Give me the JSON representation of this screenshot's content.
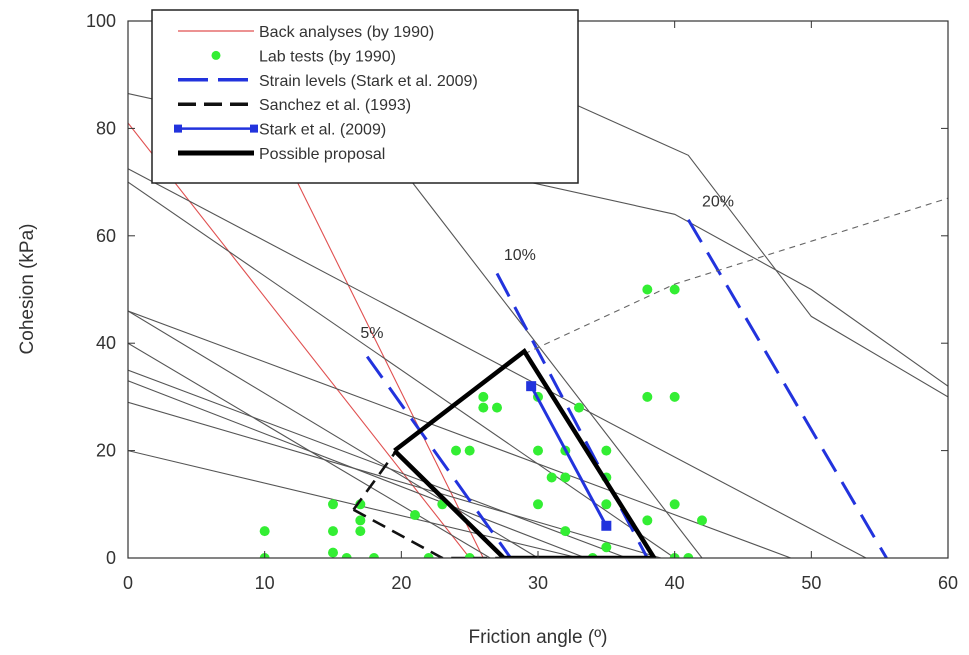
{
  "chart_data": {
    "type": "line",
    "title": "",
    "xlabel": "Friction angle (º)",
    "ylabel": "Cohesion (kPa)",
    "xlim": [
      0,
      60
    ],
    "ylim": [
      0,
      100
    ],
    "x_ticks": [
      "0",
      "10",
      "20",
      "30",
      "40",
      "50",
      "60"
    ],
    "y_ticks": [
      "0",
      "20",
      "40",
      "60",
      "80",
      "100"
    ],
    "grid": false,
    "legend_position": "top-left",
    "legend": [
      {
        "label": "Back analyses (by 1990)",
        "style": "thin-solid",
        "color": "#e05050"
      },
      {
        "label": "Lab tests (by 1990)",
        "style": "dot",
        "color": "#33ee33"
      },
      {
        "label": "Strain levels (Stark et al. 2009)",
        "style": "long-dash",
        "color": "#2233dd"
      },
      {
        "label": "Sanchez et al. (1993)",
        "style": "dash",
        "color": "#111111"
      },
      {
        "label": "Stark et al. (2009)",
        "style": "solid-square",
        "color": "#2233dd"
      },
      {
        "label": "Possible proposal",
        "style": "thick-solid",
        "color": "#000000"
      }
    ],
    "series": [
      {
        "name": "Back analyses (by 1990)",
        "type": "lines",
        "color": "#e05050",
        "lines": [
          [
            [
              0,
              81
            ],
            [
              25,
              0
            ]
          ],
          [
            [
              12,
              72
            ],
            [
              26,
              0
            ]
          ]
        ]
      },
      {
        "type": "lines",
        "color": "#555555",
        "lines": [
          [
            [
              0,
              46
            ],
            [
              30,
              0
            ]
          ],
          [
            [
              0,
              40
            ],
            [
              26.5,
              0
            ]
          ],
          [
            [
              0,
              35
            ],
            [
              36.5,
              0
            ]
          ],
          [
            [
              0,
              33
            ],
            [
              33.5,
              0
            ]
          ],
          [
            [
              0,
              29
            ],
            [
              39,
              0
            ]
          ],
          [
            [
              0,
              20
            ],
            [
              33,
              0
            ]
          ],
          [
            [
              0,
              46
            ],
            [
              48.5,
              0
            ]
          ],
          [
            [
              0,
              70
            ],
            [
              40,
              0
            ]
          ],
          [
            [
              0,
              72.5
            ],
            [
              54,
              0
            ]
          ],
          [
            [
              12,
              99
            ],
            [
              42,
              0
            ]
          ],
          [
            [
              0,
              86.5
            ],
            [
              40,
              64
            ],
            [
              50,
              50
            ],
            [
              60,
              32
            ]
          ],
          [
            [
              20,
              99
            ],
            [
              41,
              75
            ],
            [
              50,
              45
            ],
            [
              60,
              30
            ]
          ]
        ]
      },
      {
        "name": "Lab tests (by 1990)",
        "type": "scatter",
        "color": "#33ee33",
        "points": [
          [
            10,
            5
          ],
          [
            10,
            0
          ],
          [
            15,
            10
          ],
          [
            15,
            5
          ],
          [
            15,
            1
          ],
          [
            16,
            0
          ],
          [
            17,
            10
          ],
          [
            17,
            7
          ],
          [
            17,
            5
          ],
          [
            18,
            0
          ],
          [
            21,
            8
          ],
          [
            22,
            0
          ],
          [
            23,
            10
          ],
          [
            24,
            20
          ],
          [
            25,
            0
          ],
          [
            25,
            20
          ],
          [
            26,
            28
          ],
          [
            26,
            30
          ],
          [
            27,
            28
          ],
          [
            30,
            30
          ],
          [
            30,
            20
          ],
          [
            30,
            10
          ],
          [
            31,
            15
          ],
          [
            32,
            15
          ],
          [
            32,
            20
          ],
          [
            32,
            5
          ],
          [
            33,
            28
          ],
          [
            34,
            0
          ],
          [
            35,
            20
          ],
          [
            35,
            15
          ],
          [
            35,
            10
          ],
          [
            35,
            2
          ],
          [
            38,
            50
          ],
          [
            38,
            30
          ],
          [
            38,
            7
          ],
          [
            40,
            50
          ],
          [
            40,
            30
          ],
          [
            40,
            10
          ],
          [
            40,
            0
          ],
          [
            41,
            0
          ],
          [
            42,
            7
          ]
        ]
      },
      {
        "name": "Strain levels (Stark et al. 2009)",
        "type": "lines",
        "color": "#2233dd",
        "dash": "long",
        "lines": [
          [
            [
              17.5,
              37.5
            ],
            [
              28,
              0
            ]
          ],
          [
            [
              27,
              53
            ],
            [
              38,
              0
            ]
          ],
          [
            [
              41,
              63
            ],
            [
              55.5,
              0
            ]
          ]
        ]
      },
      {
        "type": "lines",
        "color": "#666666",
        "dash": "short",
        "lines": [
          [
            [
              29,
              38
            ],
            [
              40,
              51
            ],
            [
              50,
              59
            ],
            [
              60,
              67
            ]
          ]
        ]
      },
      {
        "name": "Sanchez et al. (1993)",
        "type": "lines",
        "color": "#111111",
        "dash": "medium",
        "lines": [
          [
            [
              16.5,
              9
            ],
            [
              19.5,
              19.5
            ]
          ],
          [
            [
              16.5,
              9
            ],
            [
              23,
              0
            ],
            [
              31,
              0
            ]
          ]
        ]
      },
      {
        "name": "Stark et al. (2009)",
        "type": "lines",
        "color": "#2233dd",
        "markers": "square",
        "lines": [
          [
            [
              29.5,
              32
            ],
            [
              35,
              6
            ]
          ]
        ]
      },
      {
        "name": "Possible proposal",
        "type": "polyline",
        "color": "#000000",
        "points": [
          [
            19.5,
            20
          ],
          [
            29,
            38.5
          ],
          [
            38.5,
            0
          ],
          [
            27.5,
            0
          ],
          [
            19.5,
            20
          ]
        ]
      }
    ],
    "annotations": [
      {
        "text": "5%",
        "x": 17,
        "y": 41
      },
      {
        "text": "10%",
        "x": 27.5,
        "y": 55.5
      },
      {
        "text": "20%",
        "x": 42,
        "y": 65.5
      }
    ]
  }
}
